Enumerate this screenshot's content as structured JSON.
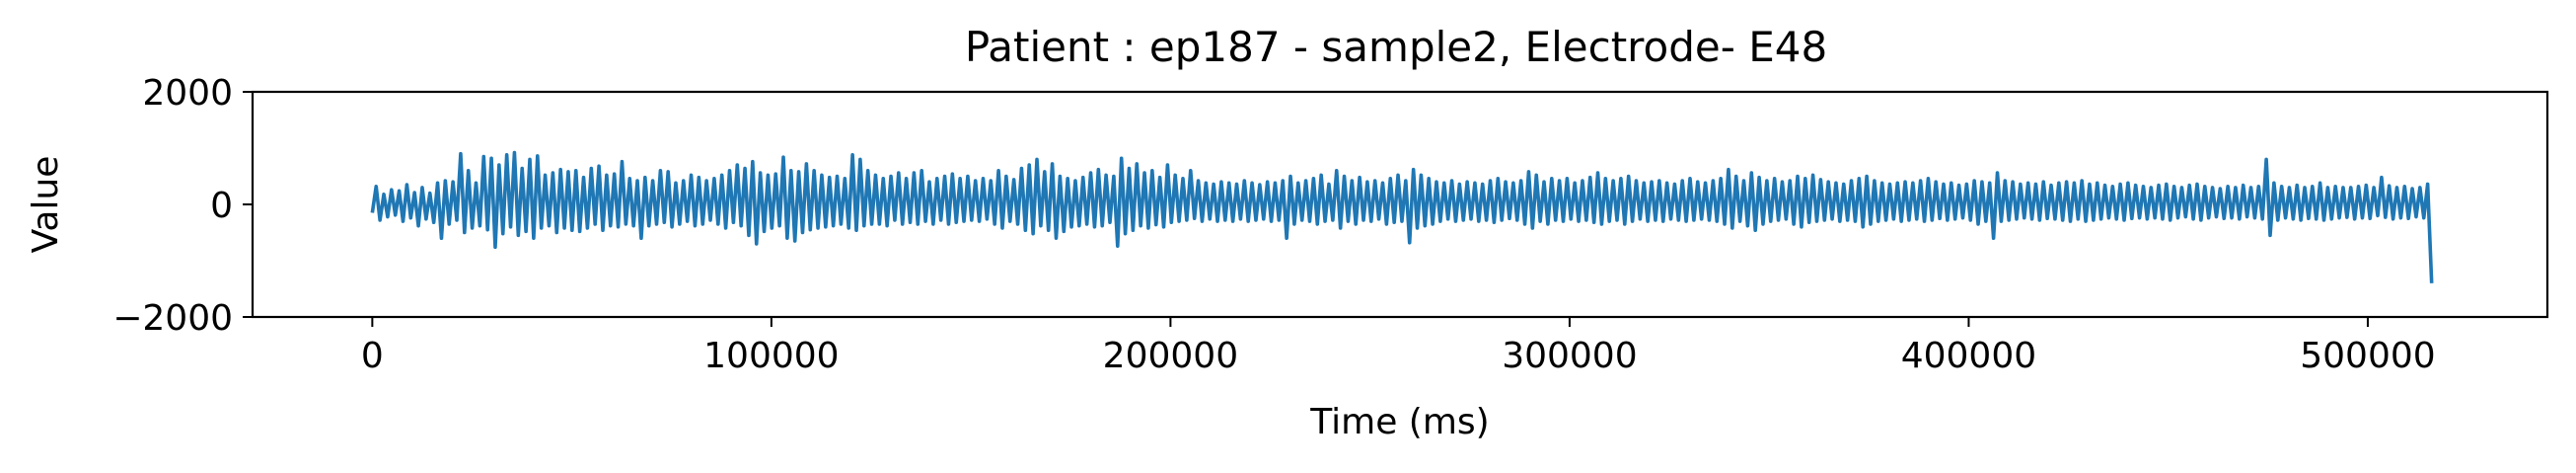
{
  "chart_data": {
    "type": "line",
    "title": "Patient : ep187 - sample2, Electrode- E48",
    "xlabel": "Time (ms)",
    "ylabel": "Value",
    "xlim": [
      -30000,
      545000
    ],
    "ylim": [
      -2000,
      2000
    ],
    "x_ticks": [
      0,
      100000,
      200000,
      300000,
      400000,
      500000
    ],
    "x_tick_labels": [
      "0",
      "100000",
      "200000",
      "300000",
      "400000",
      "500000"
    ],
    "y_ticks": [
      -2000,
      0,
      2000
    ],
    "y_tick_labels": [
      "−2000",
      "0",
      "2000"
    ],
    "grid": false,
    "series": [
      {
        "color": "#1f77b4",
        "x_start": 0,
        "x_end": 515000,
        "sample_step": 1000,
        "x_final": 516000,
        "y_final": -1400,
        "values": [
          -150,
          320,
          -280,
          180,
          -220,
          260,
          -190,
          240,
          -300,
          350,
          -240,
          210,
          -380,
          300,
          -260,
          200,
          -320,
          380,
          -600,
          420,
          -350,
          400,
          -280,
          900,
          -500,
          600,
          -420,
          380,
          -380,
          850,
          -450,
          820,
          -760,
          700,
          -520,
          880,
          -400,
          920,
          -550,
          640,
          -480,
          800,
          -600,
          860,
          -420,
          520,
          -380,
          560,
          -500,
          620,
          -420,
          580,
          -460,
          600,
          -480,
          480,
          -420,
          640,
          -350,
          680,
          -460,
          520,
          -380,
          540,
          -400,
          760,
          -350,
          460,
          -380,
          420,
          -600,
          480,
          -380,
          420,
          -350,
          600,
          -320,
          580,
          -400,
          380,
          -350,
          420,
          -300,
          520,
          -380,
          480,
          -350,
          420,
          -280,
          460,
          -350,
          520,
          -420,
          600,
          -320,
          700,
          -380,
          640,
          -550,
          760,
          -700,
          560,
          -480,
          520,
          -420,
          540,
          -380,
          840,
          -600,
          600,
          -650,
          580,
          -500,
          720,
          -450,
          600,
          -420,
          520,
          -400,
          480,
          -380,
          500,
          -350,
          460,
          -420,
          880,
          -460,
          800,
          -380,
          600,
          -350,
          520,
          -350,
          460,
          -380,
          500,
          -280,
          560,
          -350,
          460,
          -320,
          560,
          -350,
          600,
          -300,
          400,
          -350,
          460,
          -280,
          500,
          -350,
          540,
          -320,
          460,
          -300,
          500,
          -280,
          420,
          -300,
          460,
          -260,
          420,
          -350,
          600,
          -420,
          500,
          -300,
          440,
          -350,
          640,
          -460,
          700,
          -520,
          800,
          -380,
          580,
          -460,
          720,
          -600,
          500,
          -480,
          460,
          -400,
          420,
          -380,
          480,
          -350,
          560,
          -400,
          620,
          -380,
          520,
          -320,
          500,
          -740,
          820,
          -520,
          640,
          -460,
          720,
          -380,
          560,
          -420,
          600,
          -360,
          480,
          -400,
          700,
          -320,
          520,
          -300,
          460,
          -280,
          600,
          -250,
          420,
          -300,
          380,
          -260,
          360,
          -300,
          400,
          -280,
          380,
          -300,
          360,
          -260,
          420,
          -300,
          380,
          -280,
          350,
          -260,
          400,
          -300,
          380,
          -280,
          420,
          -600,
          500,
          -350,
          380,
          -280,
          420,
          -300,
          460,
          -350,
          520,
          -300,
          360,
          -280,
          600,
          -420,
          500,
          -300,
          420,
          -350,
          480,
          -280,
          400,
          -300,
          420,
          -260,
          380,
          -350,
          460,
          -320,
          520,
          -300,
          420,
          -680,
          620,
          -420,
          520,
          -380,
          460,
          -350,
          400,
          -300,
          380,
          -260,
          420,
          -300,
          360,
          -280,
          400,
          -260,
          380,
          -300,
          360,
          -280,
          420,
          -320,
          460,
          -280,
          400,
          -250,
          380,
          -280,
          420,
          -350,
          580,
          -420,
          520,
          -300,
          400,
          -350,
          460,
          -280,
          420,
          -300,
          460,
          -260,
          380,
          -300,
          420,
          -280,
          480,
          -320,
          560,
          -350,
          460,
          -300,
          420,
          -280,
          460,
          -350,
          500,
          -300,
          420,
          -260,
          380,
          -300,
          400,
          -280,
          420,
          -300,
          380,
          -260,
          360,
          -280,
          420,
          -300,
          460,
          -280,
          400,
          -260,
          380,
          -280,
          420,
          -300,
          460,
          -350,
          620,
          -420,
          500,
          -300,
          420,
          -380,
          560,
          -460,
          480,
          -350,
          420,
          -300,
          460,
          -280,
          400,
          -260,
          420,
          -350,
          500,
          -400,
          460,
          -320,
          520,
          -300,
          440,
          -280,
          400,
          -260,
          380,
          -300,
          360,
          -280,
          420,
          -300,
          460,
          -400,
          500,
          -350,
          420,
          -300,
          380,
          -280,
          360,
          -260,
          380,
          -300,
          400,
          -280,
          380,
          -260,
          420,
          -300,
          460,
          -280,
          400,
          -250,
          360,
          -280,
          380,
          -260,
          340,
          -240,
          360,
          -280,
          420,
          -350,
          400,
          -300,
          380,
          -600,
          560,
          -300,
          420,
          -280,
          400,
          -260,
          360,
          -240,
          380,
          -260,
          360,
          -280,
          400,
          -250,
          340,
          -260,
          380,
          -280,
          400,
          -300,
          380,
          -260,
          420,
          -300,
          360,
          -280,
          380,
          -260,
          340,
          -240,
          320,
          -260,
          360,
          -280,
          380,
          -250,
          340,
          -240,
          320,
          -260,
          300,
          -240,
          340,
          -260,
          360,
          -280,
          320,
          -240,
          300,
          -220,
          340,
          -260,
          360,
          -280,
          320,
          -240,
          300,
          -220,
          280,
          -250,
          320,
          -240,
          300,
          -260,
          340,
          -220,
          300,
          -240,
          320,
          -260,
          800,
          -550,
          380,
          -280,
          320,
          -240,
          300,
          -260,
          340,
          -280,
          300,
          -250,
          320,
          -260,
          380,
          -280,
          300,
          -260,
          320,
          -240,
          300,
          -230,
          300,
          -260,
          320,
          -240,
          340,
          -250,
          300,
          -200,
          480,
          -230,
          330,
          -260,
          300,
          -240,
          320,
          -250,
          280,
          -220,
          300,
          -240,
          360
        ]
      }
    ]
  }
}
